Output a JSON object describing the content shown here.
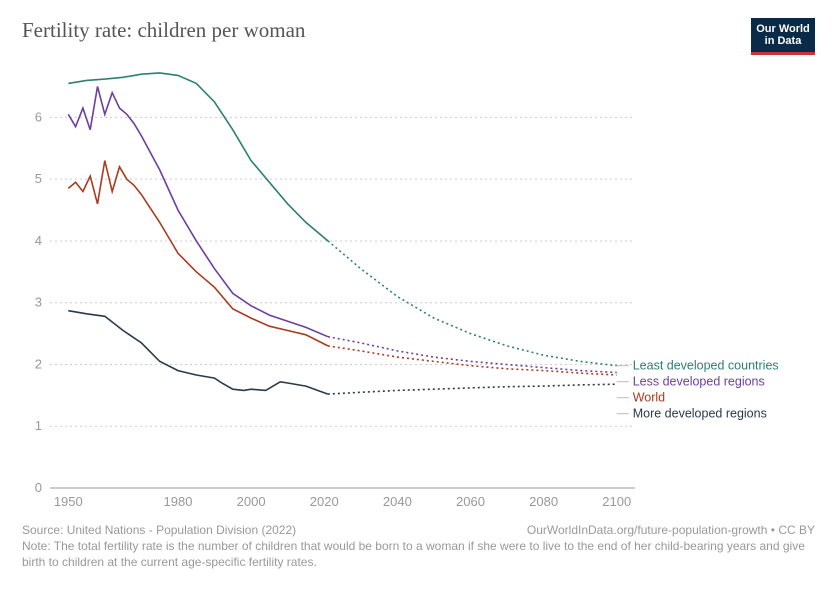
{
  "title": "Fertility rate: children per woman",
  "logo": {
    "line1": "Our World",
    "line2": "in Data"
  },
  "chart": {
    "type": "line",
    "background_color": "#ffffff",
    "grid_color": "#cccccc",
    "axis_font_color": "#999999",
    "axis_fontsize": 13,
    "x": {
      "min": 1945,
      "max": 2105,
      "ticks": [
        1950,
        1980,
        2000,
        2020,
        2040,
        2060,
        2080,
        2100
      ]
    },
    "y": {
      "min": 0,
      "max": 6.8,
      "ticks": [
        0,
        1,
        2,
        3,
        4,
        5,
        6
      ]
    },
    "line_width": 1.6,
    "series": [
      {
        "id": "least_developed",
        "label": "Least developed countries",
        "color": "#2c8075",
        "historical": [
          [
            1950,
            6.55
          ],
          [
            1955,
            6.6
          ],
          [
            1960,
            6.62
          ],
          [
            1965,
            6.65
          ],
          [
            1970,
            6.7
          ],
          [
            1975,
            6.72
          ],
          [
            1980,
            6.68
          ],
          [
            1985,
            6.55
          ],
          [
            1990,
            6.25
          ],
          [
            1995,
            5.8
          ],
          [
            2000,
            5.3
          ],
          [
            2005,
            4.95
          ],
          [
            2010,
            4.6
          ],
          [
            2015,
            4.3
          ],
          [
            2021,
            4.0
          ]
        ],
        "projection": [
          [
            2021,
            4.0
          ],
          [
            2030,
            3.55
          ],
          [
            2040,
            3.1
          ],
          [
            2050,
            2.75
          ],
          [
            2060,
            2.5
          ],
          [
            2070,
            2.3
          ],
          [
            2080,
            2.15
          ],
          [
            2090,
            2.05
          ],
          [
            2100,
            1.98
          ]
        ]
      },
      {
        "id": "less_developed",
        "label": "Less developed regions",
        "color": "#6b3fa0",
        "historical": [
          [
            1950,
            6.05
          ],
          [
            1952,
            5.85
          ],
          [
            1954,
            6.15
          ],
          [
            1956,
            5.8
          ],
          [
            1958,
            6.5
          ],
          [
            1960,
            6.05
          ],
          [
            1962,
            6.4
          ],
          [
            1964,
            6.15
          ],
          [
            1966,
            6.05
          ],
          [
            1968,
            5.9
          ],
          [
            1970,
            5.7
          ],
          [
            1975,
            5.15
          ],
          [
            1980,
            4.5
          ],
          [
            1985,
            4.0
          ],
          [
            1990,
            3.55
          ],
          [
            1995,
            3.15
          ],
          [
            2000,
            2.95
          ],
          [
            2005,
            2.8
          ],
          [
            2010,
            2.7
          ],
          [
            2015,
            2.6
          ],
          [
            2021,
            2.45
          ]
        ],
        "projection": [
          [
            2021,
            2.45
          ],
          [
            2030,
            2.35
          ],
          [
            2040,
            2.22
          ],
          [
            2050,
            2.12
          ],
          [
            2060,
            2.05
          ],
          [
            2070,
            2.0
          ],
          [
            2080,
            1.95
          ],
          [
            2090,
            1.9
          ],
          [
            2100,
            1.87
          ]
        ]
      },
      {
        "id": "world",
        "label": "World",
        "color": "#aa3b1f",
        "historical": [
          [
            1950,
            4.85
          ],
          [
            1952,
            4.95
          ],
          [
            1954,
            4.8
          ],
          [
            1956,
            5.05
          ],
          [
            1958,
            4.6
          ],
          [
            1960,
            5.3
          ],
          [
            1962,
            4.8
          ],
          [
            1964,
            5.2
          ],
          [
            1966,
            5.0
          ],
          [
            1968,
            4.9
          ],
          [
            1970,
            4.75
          ],
          [
            1975,
            4.3
          ],
          [
            1980,
            3.8
          ],
          [
            1985,
            3.5
          ],
          [
            1990,
            3.25
          ],
          [
            1995,
            2.9
          ],
          [
            2000,
            2.75
          ],
          [
            2005,
            2.62
          ],
          [
            2010,
            2.55
          ],
          [
            2015,
            2.48
          ],
          [
            2021,
            2.3
          ]
        ],
        "projection": [
          [
            2021,
            2.3
          ],
          [
            2030,
            2.22
          ],
          [
            2040,
            2.12
          ],
          [
            2050,
            2.05
          ],
          [
            2060,
            1.98
          ],
          [
            2070,
            1.93
          ],
          [
            2080,
            1.9
          ],
          [
            2090,
            1.86
          ],
          [
            2100,
            1.83
          ]
        ]
      },
      {
        "id": "more_developed",
        "label": "More developed regions",
        "color": "#2a3a4a",
        "historical": [
          [
            1950,
            2.87
          ],
          [
            1955,
            2.82
          ],
          [
            1960,
            2.78
          ],
          [
            1965,
            2.55
          ],
          [
            1970,
            2.35
          ],
          [
            1975,
            2.05
          ],
          [
            1980,
            1.9
          ],
          [
            1985,
            1.83
          ],
          [
            1990,
            1.78
          ],
          [
            1992,
            1.7
          ],
          [
            1995,
            1.6
          ],
          [
            1998,
            1.58
          ],
          [
            2000,
            1.6
          ],
          [
            2004,
            1.58
          ],
          [
            2008,
            1.72
          ],
          [
            2010,
            1.7
          ],
          [
            2015,
            1.65
          ],
          [
            2021,
            1.52
          ]
        ],
        "projection": [
          [
            2021,
            1.52
          ],
          [
            2030,
            1.55
          ],
          [
            2040,
            1.58
          ],
          [
            2050,
            1.6
          ],
          [
            2060,
            1.62
          ],
          [
            2070,
            1.64
          ],
          [
            2080,
            1.65
          ],
          [
            2090,
            1.67
          ],
          [
            2100,
            1.68
          ]
        ]
      }
    ],
    "legend_order": [
      "least_developed",
      "less_developed",
      "world",
      "more_developed"
    ],
    "legend_fontsize": 12.5
  },
  "footer": {
    "source": "Source: United Nations - Population Division (2022)",
    "credit": "OurWorldInData.org/future-population-growth • CC BY",
    "note": "Note: The total fertility rate is the number of children that would be born to a woman if she were to live to the end of her child-bearing years and give birth to children at the current age-specific fertility rates."
  }
}
